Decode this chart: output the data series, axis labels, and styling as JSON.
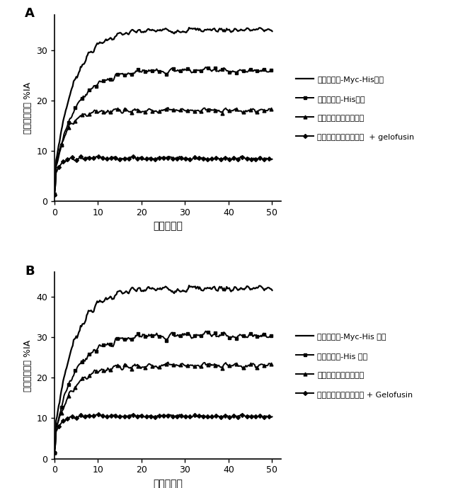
{
  "panel_A": {
    "label": "A",
    "series": [
      {
        "name": "ナノボディ-Myc-Hisタグ",
        "start": 5.5,
        "plateau": 34.0,
        "tau": 4.5,
        "noise": 0.55,
        "marker": "none",
        "linewidth": 1.6
      },
      {
        "name": "ナノボディ-Hisタグ",
        "start": 5.5,
        "plateau": 26.0,
        "tau": 5.0,
        "noise": 0.5,
        "marker": "sq",
        "linewidth": 1.4
      },
      {
        "name": "非タグ付加ナノボディ",
        "start": 5.5,
        "plateau": 18.0,
        "tau": 2.5,
        "noise": 0.45,
        "marker": "tri",
        "linewidth": 1.4
      },
      {
        "name": "非タグ付加ナノボディ  + gelofusin",
        "start": 5.0,
        "plateau": 8.5,
        "tau": 1.2,
        "noise": 0.35,
        "marker": "plus",
        "linewidth": 1.4
      }
    ],
    "xlim": [
      0,
      52
    ],
    "ylim": [
      0,
      37
    ],
    "yticks": [
      0,
      10,
      20,
      30
    ],
    "xticks": [
      0,
      10,
      20,
      30,
      40,
      50
    ],
    "xlabel": "時間（分）",
    "ylabel": "腎臓における %IA"
  },
  "panel_B": {
    "label": "B",
    "series": [
      {
        "name": "ナノボディ-Myc-His タグ",
        "start": 6.0,
        "plateau": 42.0,
        "tau": 4.5,
        "noise": 0.9,
        "marker": "none",
        "linewidth": 1.6
      },
      {
        "name": "ナノボディ-His タグ",
        "start": 6.0,
        "plateau": 30.5,
        "tau": 5.0,
        "noise": 0.8,
        "marker": "sq",
        "linewidth": 1.4
      },
      {
        "name": "非タグ付加ナノボディ",
        "start": 6.0,
        "plateau": 23.0,
        "tau": 4.0,
        "noise": 0.65,
        "marker": "tri",
        "linewidth": 1.4
      },
      {
        "name": "非タグ付加ナノボディ + Gelofusin",
        "start": 6.0,
        "plateau": 10.5,
        "tau": 1.5,
        "noise": 0.35,
        "marker": "plus",
        "linewidth": 1.4
      }
    ],
    "xlim": [
      0,
      52
    ],
    "ylim": [
      0,
      46
    ],
    "yticks": [
      0,
      10,
      20,
      30,
      40
    ],
    "xticks": [
      0,
      10,
      20,
      30,
      40,
      50
    ],
    "xlabel": "時間（分）",
    "ylabel": "腎臓における %IA"
  },
  "color": "#000000",
  "background": "#ffffff",
  "figsize": [
    6.4,
    6.89
  ],
  "dpi": 100
}
